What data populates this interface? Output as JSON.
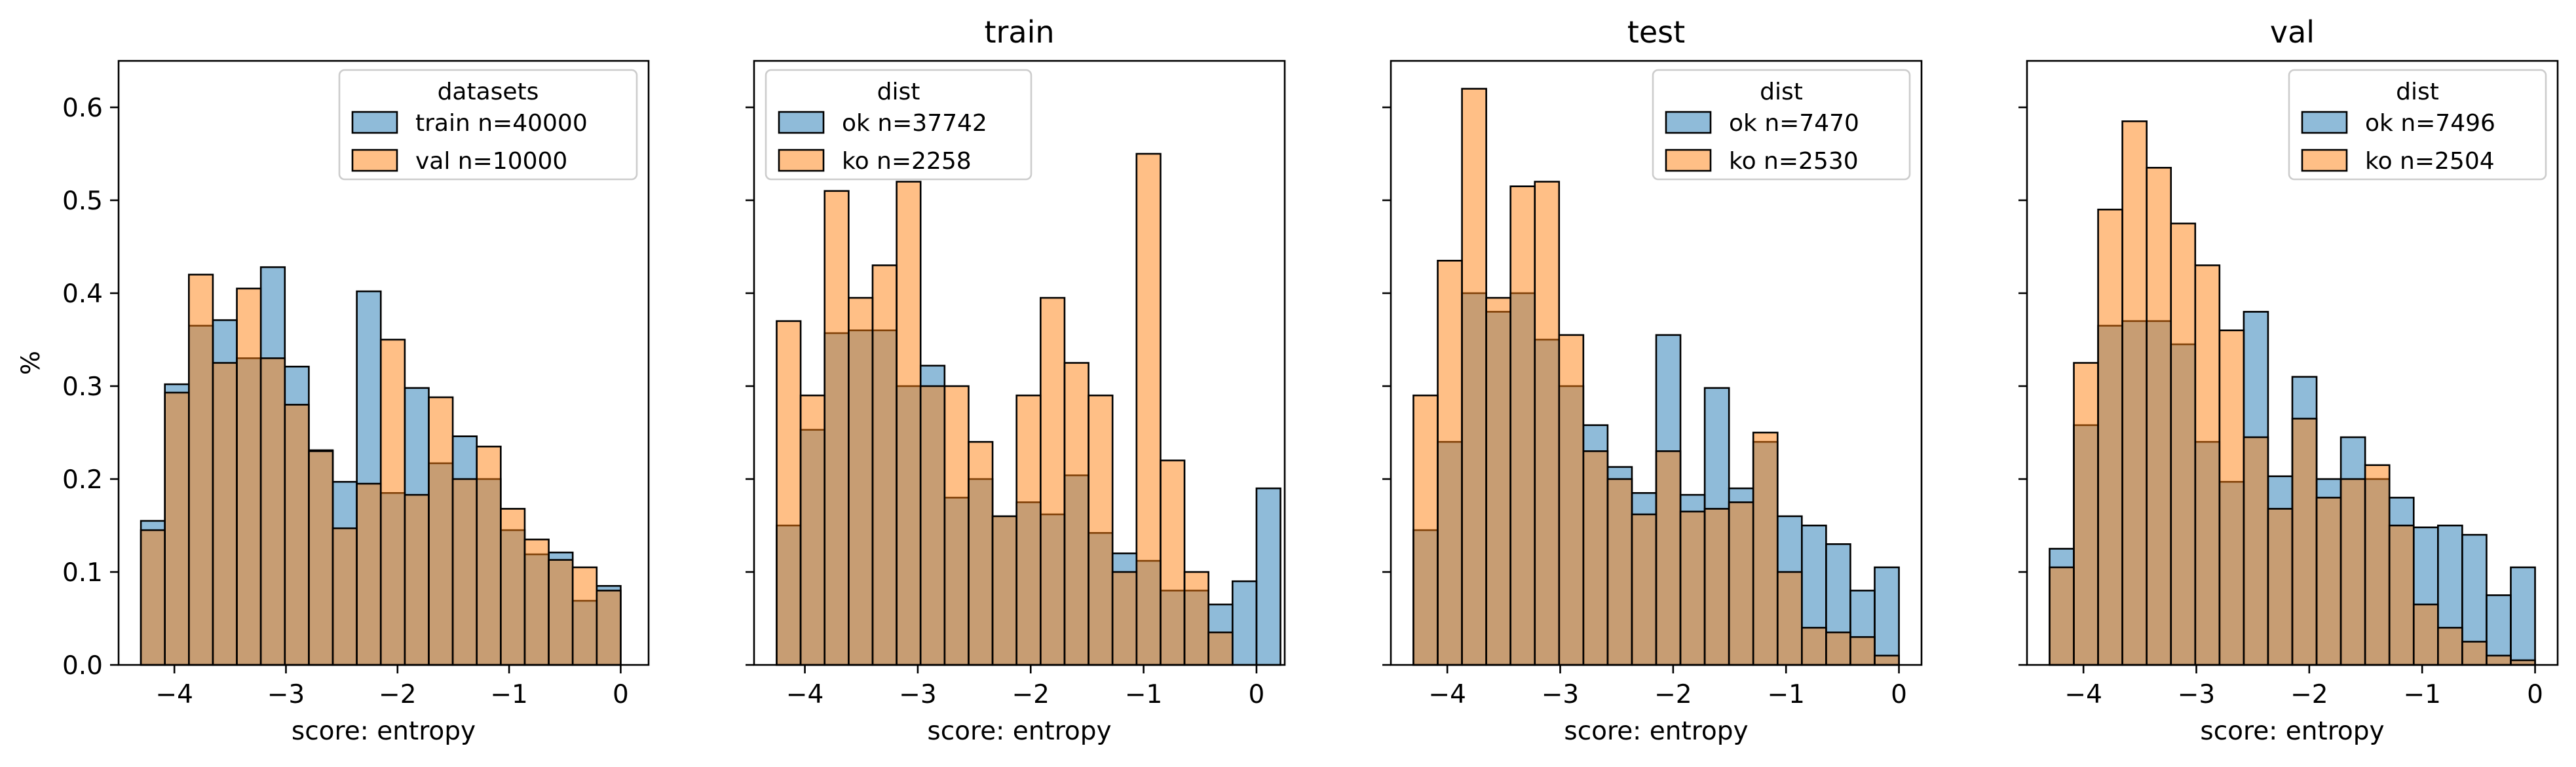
{
  "figure": {
    "background": "#ffffff",
    "colors": {
      "blue": "#1f77b4",
      "orange": "#ff7f0e",
      "overlap": "#c09a72"
    }
  },
  "chart_data": [
    {
      "type": "histogram",
      "title": "",
      "xlabel": "score: entropy",
      "ylabel": "%",
      "xlim": [
        -4.5,
        0.25
      ],
      "ylim": [
        0,
        0.65
      ],
      "xticks": [
        -4,
        -3,
        -2,
        -1,
        0
      ],
      "yticks": [
        0.0,
        0.1,
        0.2,
        0.3,
        0.4,
        0.5,
        0.6
      ],
      "grid": false,
      "legend": {
        "title": "datasets",
        "position": "top-right"
      },
      "bin_start": -4.3,
      "bin_width": 0.215,
      "series": [
        {
          "name": "train n=40000",
          "color": "#1f77b4",
          "values": [
            0.155,
            0.302,
            0.365,
            0.371,
            0.33,
            0.428,
            0.321,
            0.231,
            0.197,
            0.402,
            0.185,
            0.298,
            0.217,
            0.246,
            0.2,
            0.145,
            0.119,
            0.121,
            0.069,
            0.085
          ]
        },
        {
          "name": "val n=10000",
          "color": "#ff7f0e",
          "values": [
            0.145,
            0.293,
            0.42,
            0.325,
            0.405,
            0.33,
            0.28,
            0.23,
            0.147,
            0.195,
            0.35,
            0.183,
            0.288,
            0.2,
            0.235,
            0.168,
            0.135,
            0.113,
            0.105,
            0.08
          ]
        }
      ]
    },
    {
      "type": "histogram",
      "title": "train",
      "xlabel": "score: entropy",
      "xlim": [
        -4.45,
        0.25
      ],
      "ylim": [
        0,
        0.65
      ],
      "xticks": [
        -4,
        -3,
        -2,
        -1,
        0
      ],
      "grid": false,
      "legend": {
        "title": "dist",
        "position": "top-left"
      },
      "bin_start": -4.25,
      "bin_width": 0.2125,
      "series": [
        {
          "name": "ok n=37742",
          "color": "#1f77b4",
          "values": [
            0.15,
            0.253,
            0.357,
            0.36,
            0.36,
            0.3,
            0.322,
            0.18,
            0.2,
            0.16,
            0.175,
            0.162,
            0.204,
            0.142,
            0.12,
            0.112,
            0.08,
            0.08,
            0.065,
            0.09,
            0.19
          ]
        },
        {
          "name": "ko n=2258",
          "color": "#ff7f0e",
          "values": [
            0.37,
            0.29,
            0.51,
            0.395,
            0.43,
            0.52,
            0.3,
            0.3,
            0.24,
            0.16,
            0.29,
            0.395,
            0.325,
            0.29,
            0.1,
            0.55,
            0.22,
            0.1,
            0.035,
            0.0,
            0.0
          ]
        }
      ]
    },
    {
      "type": "histogram",
      "title": "test",
      "xlabel": "score: entropy",
      "xlim": [
        -4.5,
        0.2
      ],
      "ylim": [
        0,
        0.65
      ],
      "xticks": [
        -4,
        -3,
        -2,
        -1,
        0
      ],
      "grid": false,
      "legend": {
        "title": "dist",
        "position": "top-right"
      },
      "bin_start": -4.3,
      "bin_width": 0.215,
      "series": [
        {
          "name": "ok n=7470",
          "color": "#1f77b4",
          "values": [
            0.145,
            0.24,
            0.4,
            0.38,
            0.4,
            0.35,
            0.3,
            0.258,
            0.213,
            0.185,
            0.355,
            0.183,
            0.298,
            0.19,
            0.24,
            0.16,
            0.15,
            0.13,
            0.08,
            0.105
          ]
        },
        {
          "name": "ko n=2530",
          "color": "#ff7f0e",
          "values": [
            0.29,
            0.435,
            0.62,
            0.395,
            0.515,
            0.52,
            0.355,
            0.23,
            0.2,
            0.162,
            0.23,
            0.165,
            0.168,
            0.175,
            0.25,
            0.1,
            0.04,
            0.035,
            0.03,
            0.01
          ]
        }
      ]
    },
    {
      "type": "histogram",
      "title": "val",
      "xlabel": "score: entropy",
      "xlim": [
        -4.5,
        0.2
      ],
      "ylim": [
        0,
        0.65
      ],
      "xticks": [
        -4,
        -3,
        -2,
        -1,
        0
      ],
      "grid": false,
      "legend": {
        "title": "dist",
        "position": "top-right"
      },
      "bin_start": -4.3,
      "bin_width": 0.215,
      "series": [
        {
          "name": "ok n=7496",
          "color": "#1f77b4",
          "values": [
            0.125,
            0.258,
            0.365,
            0.37,
            0.37,
            0.345,
            0.24,
            0.197,
            0.38,
            0.203,
            0.31,
            0.2,
            0.245,
            0.2,
            0.18,
            0.148,
            0.15,
            0.14,
            0.075,
            0.105
          ]
        },
        {
          "name": "ko n=2504",
          "color": "#ff7f0e",
          "values": [
            0.105,
            0.325,
            0.49,
            0.585,
            0.535,
            0.475,
            0.43,
            0.36,
            0.245,
            0.168,
            0.265,
            0.18,
            0.2,
            0.215,
            0.15,
            0.065,
            0.04,
            0.025,
            0.01,
            0.005
          ]
        }
      ]
    }
  ]
}
